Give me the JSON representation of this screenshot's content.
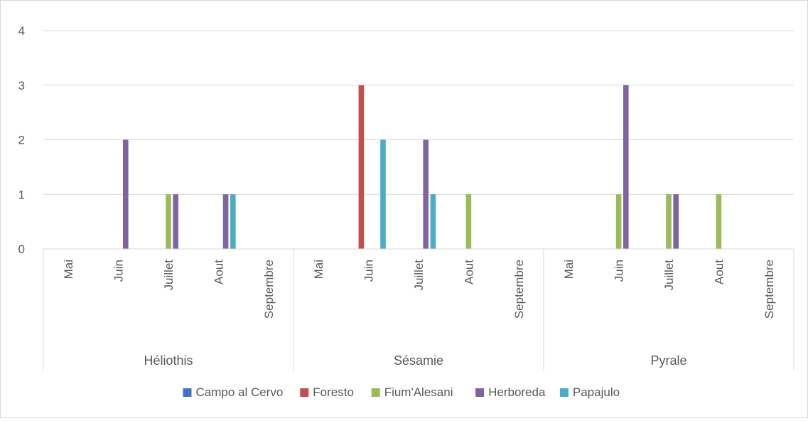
{
  "chart_data": {
    "type": "bar",
    "title": "",
    "xlabel": "",
    "ylabel": "",
    "ylim": [
      0,
      4
    ],
    "yticks": [
      0,
      1,
      2,
      3,
      4
    ],
    "grid": true,
    "legend_position": "bottom",
    "groups": [
      {
        "name": "Héliothis",
        "categories": [
          "Mai",
          "Juin",
          "Juillet",
          "Aout",
          "Septembre"
        ]
      },
      {
        "name": "Sésamie",
        "categories": [
          "Mai",
          "Juin",
          "Juillet",
          "Aout",
          "Septembre"
        ]
      },
      {
        "name": "Pyrale",
        "categories": [
          "Mai",
          "Juin",
          "Juillet",
          "Aout",
          "Septembre"
        ]
      }
    ],
    "series": [
      {
        "name": "Campo al Cervo",
        "color": "#4472c4",
        "values": [
          0,
          0,
          0,
          0,
          0,
          0,
          0,
          0,
          0,
          0,
          0,
          0,
          0,
          0,
          0
        ]
      },
      {
        "name": "Foresto",
        "color": "#c0504d",
        "values": [
          0,
          0,
          0,
          0,
          0,
          0,
          3,
          0,
          0,
          0,
          0,
          0,
          0,
          0,
          0
        ]
      },
      {
        "name": "Fium'Alesani",
        "color": "#9bbb59",
        "values": [
          0,
          0,
          1,
          0,
          0,
          0,
          0,
          0,
          1,
          0,
          0,
          1,
          1,
          1,
          0
        ]
      },
      {
        "name": "Herboreda",
        "color": "#8064a2",
        "values": [
          0,
          2,
          1,
          1,
          0,
          0,
          0,
          2,
          0,
          0,
          0,
          3,
          1,
          0,
          0
        ]
      },
      {
        "name": "Papajulo",
        "color": "#4bacc6",
        "values": [
          0,
          0,
          0,
          1,
          0,
          0,
          2,
          1,
          0,
          0,
          0,
          0,
          0,
          0,
          0
        ]
      }
    ]
  }
}
